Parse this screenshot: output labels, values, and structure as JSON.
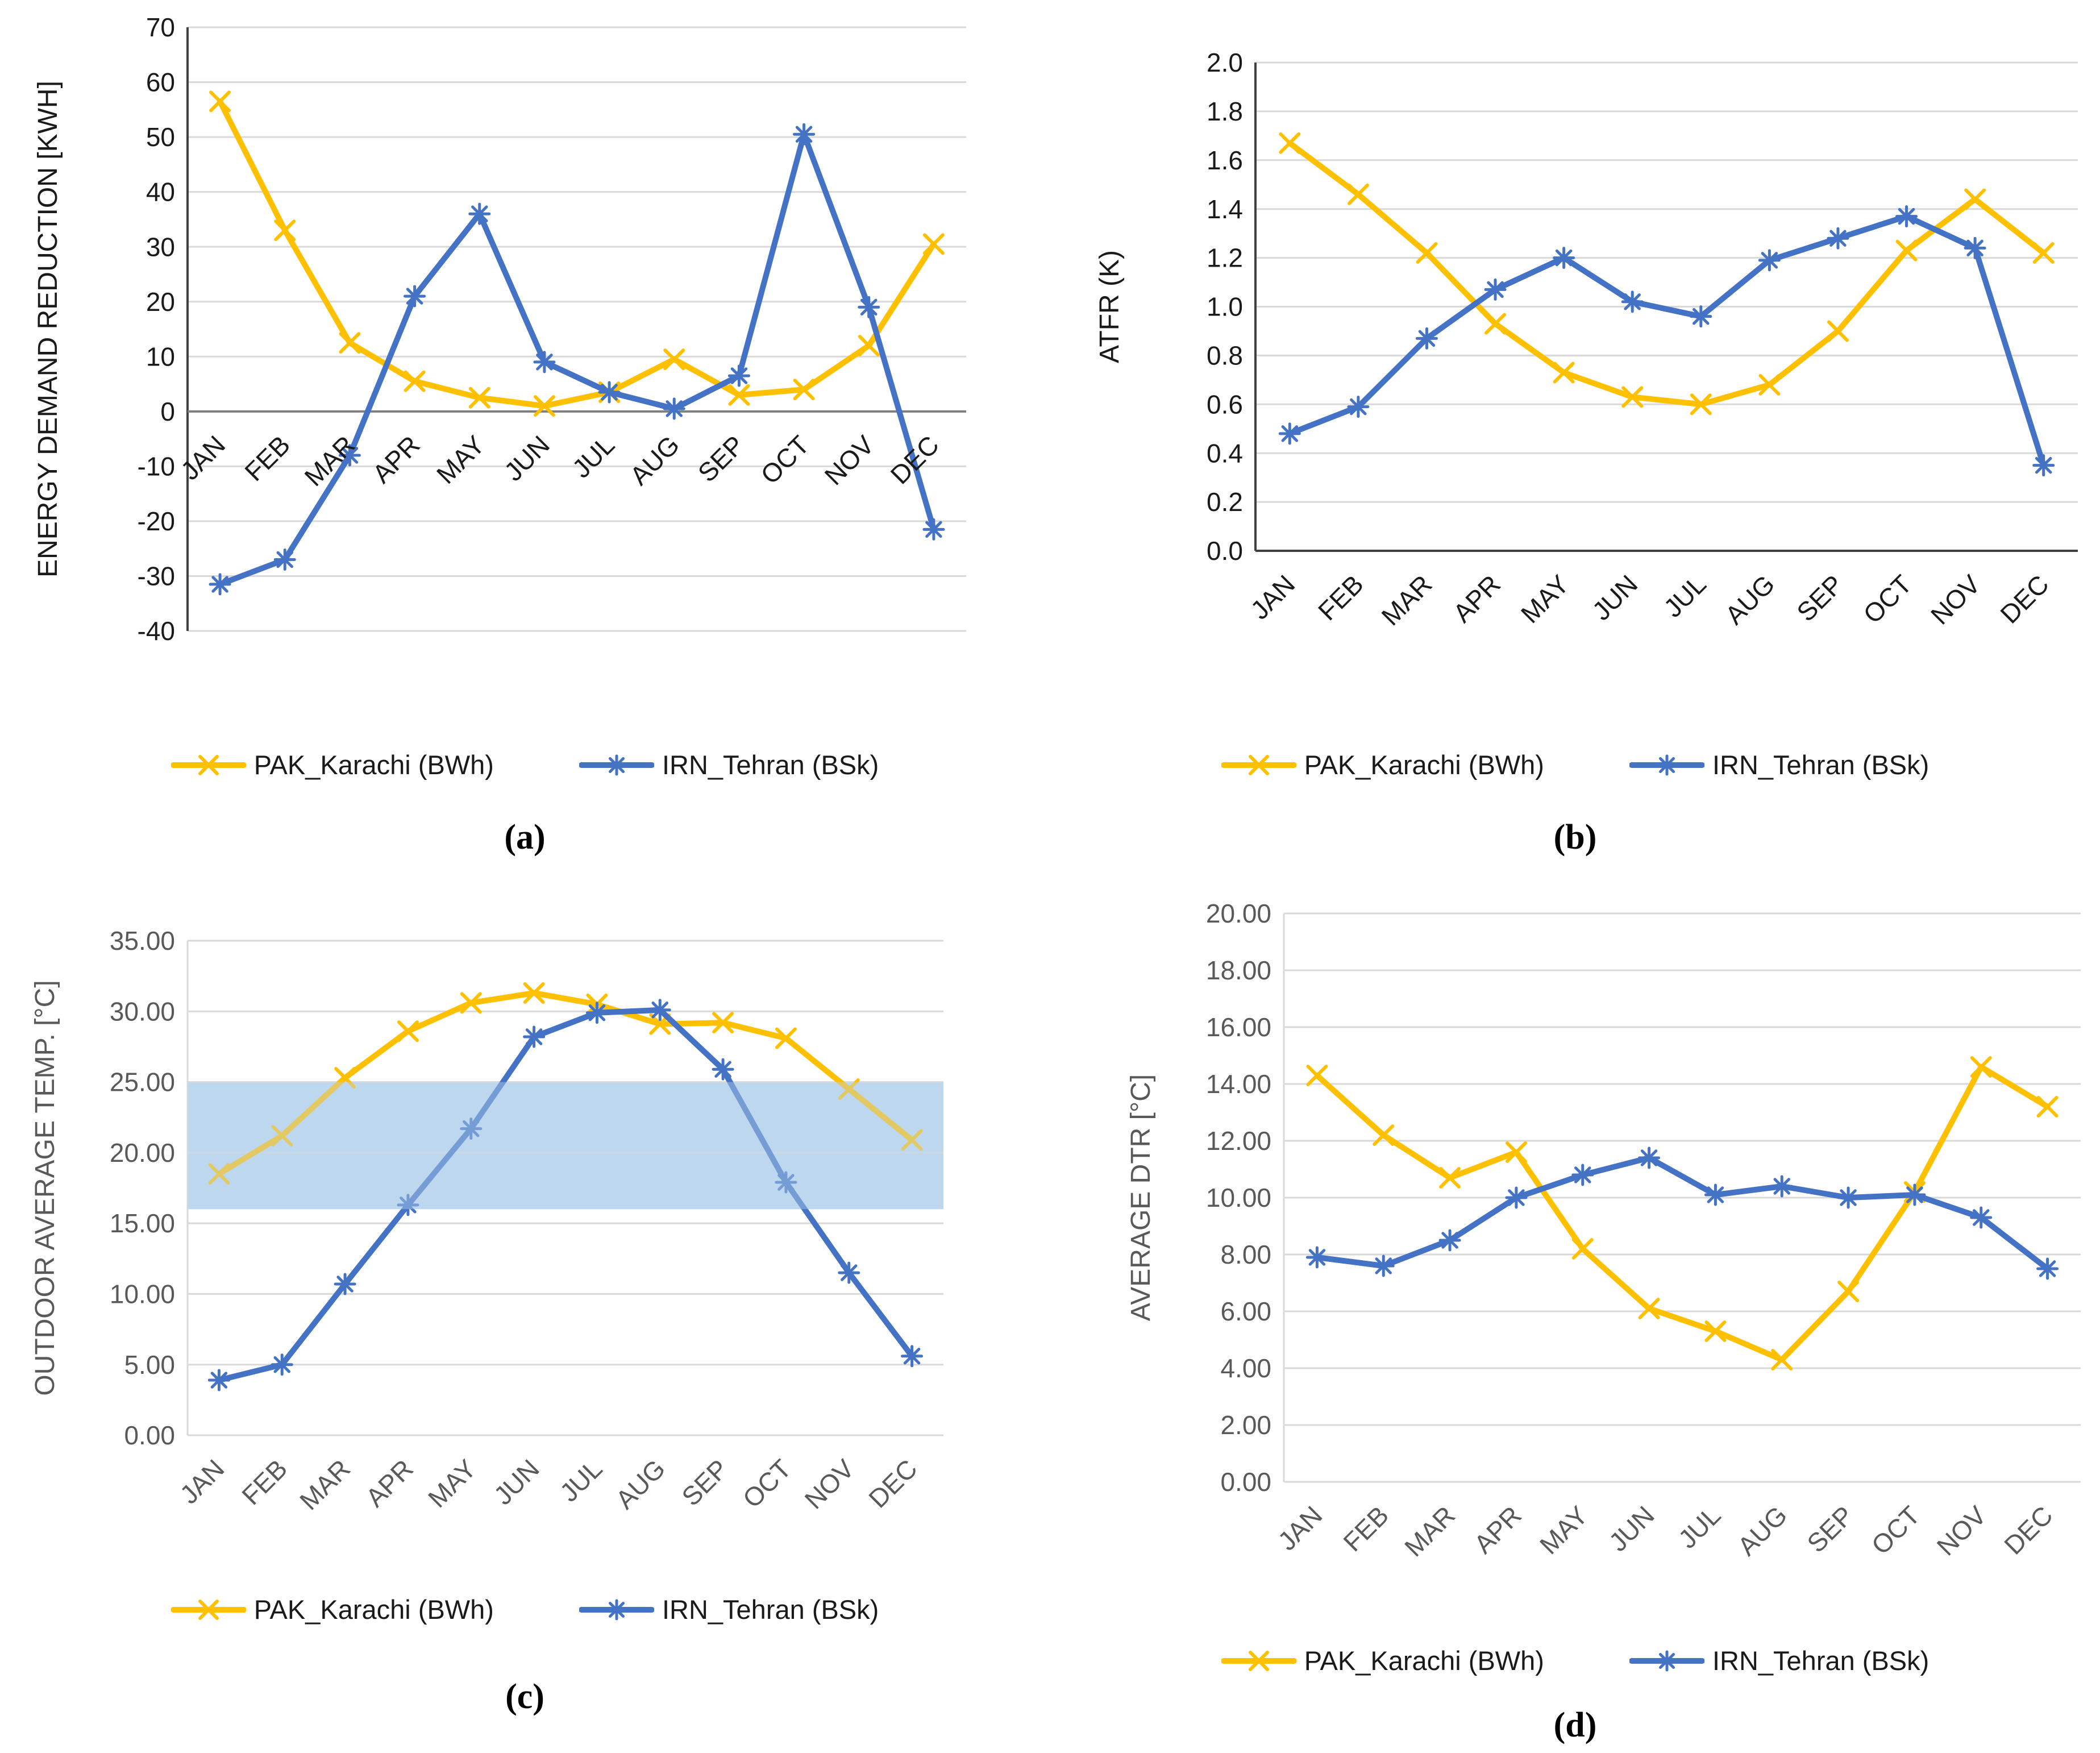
{
  "figure": {
    "description": "Four-panel monthly climate/energy comparison line charts",
    "months": [
      "JAN",
      "FEB",
      "MAR",
      "APR",
      "MAY",
      "JUN",
      "JUL",
      "AUG",
      "SEP",
      "OCT",
      "NOV",
      "DEC"
    ],
    "legend_labels": [
      "PAK_Karachi (BWh)",
      "IRN_Tehran (BSk)"
    ]
  },
  "colors": {
    "karachi": "#FFC000",
    "tehran": "#4472C4",
    "grid": "#D9D9D9",
    "axis_dark": "#404040",
    "zero_line": "#7F7F7F",
    "text_dark": "#1A1A1A",
    "text_gray": "#595959",
    "band": "#BDD7EE",
    "background": "#FFFFFF"
  },
  "chart_data": [
    {
      "type": "line",
      "caption": "(a)",
      "ylabel": "ENERGY DEMAND REDUCTION [KWH]",
      "xlabel": "",
      "ylim": [
        -40,
        70
      ],
      "ystep": 10,
      "tick_decimals": 0,
      "grid": true,
      "legend_position": "bottom",
      "categories": [
        "JAN",
        "FEB",
        "MAR",
        "APR",
        "MAY",
        "JUN",
        "JUL",
        "AUG",
        "SEP",
        "OCT",
        "NOV",
        "DEC"
      ],
      "series": [
        {
          "name": "PAK_Karachi (BWh)",
          "color": "#FFC000",
          "marker": "x",
          "values": [
            56.5,
            33,
            12.5,
            5.5,
            2.5,
            1,
            3.5,
            9.5,
            3,
            4,
            12,
            30.5
          ]
        },
        {
          "name": "IRN_Tehran (BSk)",
          "color": "#4472C4",
          "marker": "asterisk",
          "values": [
            -31.5,
            -27,
            -8,
            21,
            36,
            9,
            3.5,
            0.5,
            6.5,
            50.5,
            19,
            -21.5
          ]
        }
      ]
    },
    {
      "type": "line",
      "caption": "(b)",
      "ylabel": "ATFR (K)",
      "xlabel": "",
      "ylim": [
        0,
        2.0
      ],
      "ystep": 0.2,
      "tick_decimals": 1,
      "grid": true,
      "legend_position": "bottom",
      "categories": [
        "JAN",
        "FEB",
        "MAR",
        "APR",
        "MAY",
        "JUN",
        "JUL",
        "AUG",
        "SEP",
        "OCT",
        "NOV",
        "DEC"
      ],
      "series": [
        {
          "name": "PAK_Karachi (BWh)",
          "color": "#FFC000",
          "marker": "x",
          "values": [
            1.67,
            1.46,
            1.22,
            0.93,
            0.73,
            0.63,
            0.6,
            0.68,
            0.9,
            1.23,
            1.44,
            1.22
          ]
        },
        {
          "name": "IRN_Tehran (BSk)",
          "color": "#4472C4",
          "marker": "asterisk",
          "values": [
            0.48,
            0.59,
            0.87,
            1.07,
            1.2,
            1.02,
            0.96,
            1.19,
            1.28,
            1.37,
            1.24,
            0.35
          ]
        }
      ]
    },
    {
      "type": "line",
      "caption": "(c)",
      "ylabel": "OUTDOOR AVERAGE TEMP. [°C]",
      "xlabel": "",
      "ylim": [
        0,
        35
      ],
      "ystep": 5,
      "tick_decimals": 2,
      "grid": true,
      "legend_position": "bottom",
      "band": {
        "ymin": 16,
        "ymax": 25,
        "color": "#BDD7EE"
      },
      "categories": [
        "JAN",
        "FEB",
        "MAR",
        "APR",
        "MAY",
        "JUN",
        "JUL",
        "AUG",
        "SEP",
        "OCT",
        "NOV",
        "DEC"
      ],
      "series": [
        {
          "name": "PAK_Karachi (BWh)",
          "color": "#FFC000",
          "marker": "x",
          "values": [
            18.5,
            21.2,
            25.3,
            28.6,
            30.6,
            31.3,
            30.5,
            29.1,
            29.2,
            28.1,
            24.5,
            20.9
          ]
        },
        {
          "name": "IRN_Tehran (BSk)",
          "color": "#4472C4",
          "marker": "asterisk",
          "values": [
            3.9,
            5.0,
            10.7,
            16.3,
            21.7,
            28.2,
            29.9,
            30.1,
            25.9,
            17.9,
            11.5,
            5.6
          ]
        }
      ]
    },
    {
      "type": "line",
      "caption": "(d)",
      "ylabel": "AVERAGE DTR [°C]",
      "xlabel": "",
      "ylim": [
        0,
        20
      ],
      "ystep": 2,
      "tick_decimals": 2,
      "grid": true,
      "legend_position": "bottom",
      "categories": [
        "JAN",
        "FEB",
        "MAR",
        "APR",
        "MAY",
        "JUN",
        "JUL",
        "AUG",
        "SEP",
        "OCT",
        "NOV",
        "DEC"
      ],
      "series": [
        {
          "name": "PAK_Karachi (BWh)",
          "color": "#FFC000",
          "marker": "x",
          "values": [
            14.3,
            12.2,
            10.7,
            11.6,
            8.2,
            6.1,
            5.3,
            4.3,
            6.7,
            10.2,
            14.6,
            13.2
          ]
        },
        {
          "name": "IRN_Tehran (BSk)",
          "color": "#4472C4",
          "marker": "asterisk",
          "values": [
            7.9,
            7.6,
            8.5,
            10.0,
            10.8,
            11.4,
            10.1,
            10.4,
            10.0,
            10.1,
            9.3,
            7.5
          ]
        }
      ]
    }
  ]
}
